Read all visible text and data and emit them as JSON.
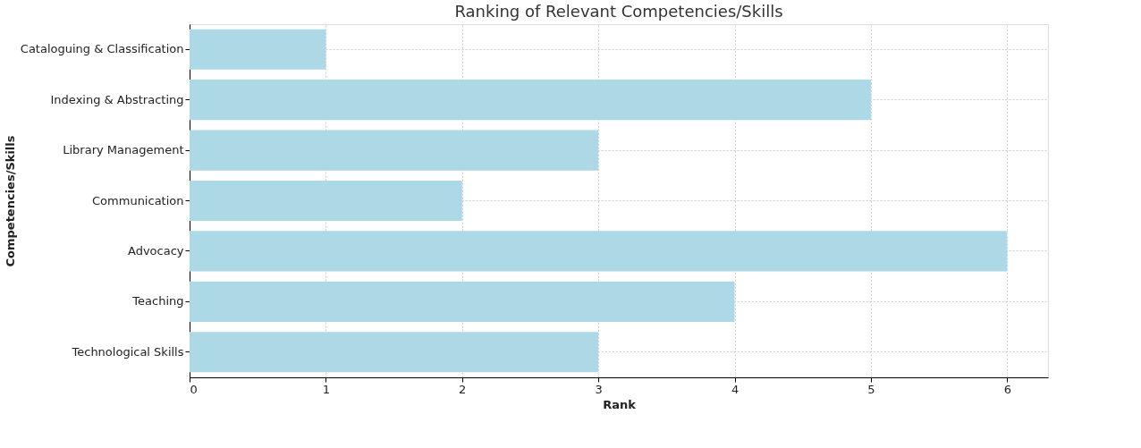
{
  "chart_data": {
    "type": "bar",
    "orientation": "horizontal",
    "title": "Ranking of Relevant Competencies/Skills",
    "xlabel": "Rank",
    "ylabel": "Competencies/Skills",
    "categories": [
      "Cataloguing & Classification",
      "Indexing & Abstracting",
      "Library Management",
      "Communication",
      "Advocacy",
      "Teaching",
      "Technological Skills"
    ],
    "values": [
      1,
      5,
      3,
      2,
      6,
      4,
      3
    ],
    "color": "#add8e6",
    "xlim": [
      0,
      6.3
    ],
    "xticks": [
      0,
      1,
      2,
      3,
      4,
      5,
      6
    ],
    "grid": true
  }
}
